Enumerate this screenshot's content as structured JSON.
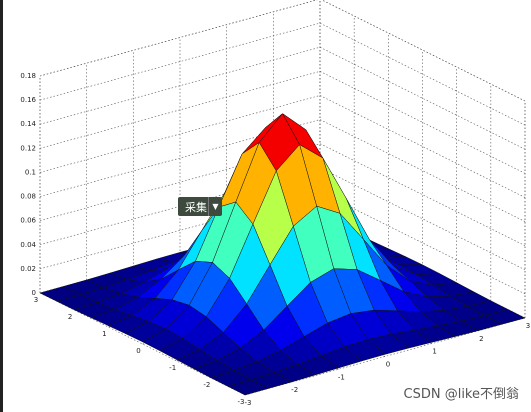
{
  "chart_data": {
    "type": "surface",
    "x": [
      -3,
      -2.5,
      -2,
      -1.5,
      -1,
      -0.5,
      0,
      0.5,
      1,
      1.5,
      2,
      2.5,
      3
    ],
    "y": [
      -3,
      -2.5,
      -2,
      -1.5,
      -1,
      -0.5,
      0,
      0.5,
      1,
      1.5,
      2,
      2.5,
      3
    ],
    "z": [
      [
        0.0,
        0.0001,
        0.0002,
        0.0006,
        0.0011,
        0.0016,
        0.0018,
        0.0016,
        0.0011,
        0.0006,
        0.0002,
        0.0001,
        0.0
      ],
      [
        0.0001,
        0.0003,
        0.0009,
        0.0023,
        0.0042,
        0.0062,
        0.007,
        0.0062,
        0.0042,
        0.0023,
        0.0009,
        0.0003,
        0.0001
      ],
      [
        0.0002,
        0.0009,
        0.0029,
        0.007,
        0.0131,
        0.019,
        0.0215,
        0.019,
        0.0131,
        0.007,
        0.0029,
        0.0009,
        0.0002
      ],
      [
        0.0006,
        0.0023,
        0.007,
        0.0168,
        0.0313,
        0.0456,
        0.0517,
        0.0456,
        0.0313,
        0.0168,
        0.007,
        0.0023,
        0.0006
      ],
      [
        0.0011,
        0.0042,
        0.0131,
        0.0314,
        0.0585,
        0.0852,
        0.0965,
        0.0852,
        0.0585,
        0.0314,
        0.0131,
        0.0042,
        0.0011
      ],
      [
        0.0016,
        0.0062,
        0.019,
        0.0456,
        0.0852,
        0.124,
        0.1405,
        0.124,
        0.0852,
        0.0456,
        0.019,
        0.0062,
        0.0016
      ],
      [
        0.0018,
        0.007,
        0.0215,
        0.0517,
        0.0965,
        0.1405,
        0.1592,
        0.1405,
        0.0965,
        0.0517,
        0.0215,
        0.007,
        0.0018
      ],
      [
        0.0016,
        0.0062,
        0.019,
        0.0456,
        0.0852,
        0.124,
        0.1405,
        0.124,
        0.0852,
        0.0456,
        0.019,
        0.0062,
        0.0016
      ],
      [
        0.0011,
        0.0042,
        0.0131,
        0.0314,
        0.0585,
        0.0852,
        0.0965,
        0.0852,
        0.0585,
        0.0314,
        0.0131,
        0.0042,
        0.0011
      ],
      [
        0.0006,
        0.0023,
        0.007,
        0.0168,
        0.0313,
        0.0456,
        0.0517,
        0.0456,
        0.0313,
        0.0168,
        0.007,
        0.0023,
        0.0006
      ],
      [
        0.0002,
        0.0009,
        0.0029,
        0.007,
        0.0131,
        0.019,
        0.0215,
        0.019,
        0.0131,
        0.007,
        0.0029,
        0.0009,
        0.0002
      ],
      [
        0.0001,
        0.0003,
        0.0009,
        0.0023,
        0.0042,
        0.0062,
        0.007,
        0.0062,
        0.0042,
        0.0023,
        0.0009,
        0.0003,
        0.0001
      ],
      [
        0.0,
        0.0001,
        0.0002,
        0.0006,
        0.0011,
        0.0016,
        0.0018,
        0.0016,
        0.0011,
        0.0006,
        0.0002,
        0.0001,
        0.0
      ]
    ],
    "xlim": [
      -3,
      3
    ],
    "ylim": [
      -3,
      3
    ],
    "zlim": [
      0,
      0.18
    ],
    "xticks": [
      -3,
      -2,
      -1,
      0,
      1,
      2,
      3
    ],
    "yticks": [
      -3,
      -2,
      -1,
      0,
      1,
      2,
      3
    ],
    "zticks": [
      0,
      0.02,
      0.04,
      0.06,
      0.08,
      0.1,
      0.12,
      0.14,
      0.16,
      0.18
    ],
    "colormap": "jet",
    "grid": true
  },
  "overlay": {
    "button": "采集"
  },
  "watermark": "CSDN @like不倒翁"
}
